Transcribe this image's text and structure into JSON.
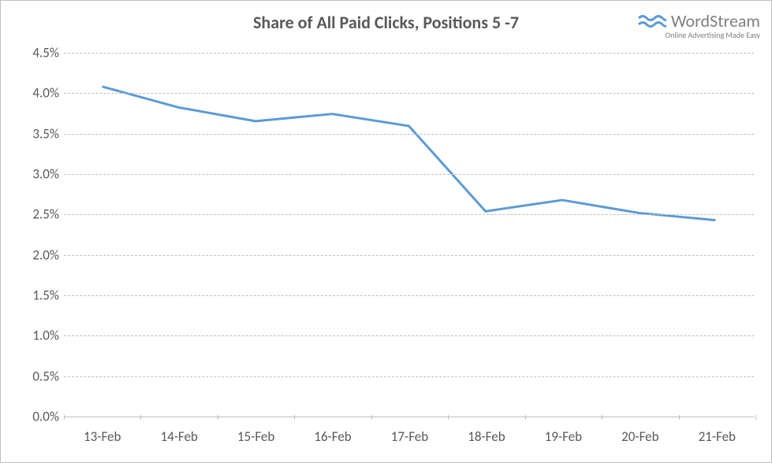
{
  "chart": {
    "type": "line",
    "title": "Share of All Paid Clicks, Positions 5 -7",
    "title_fontsize": 22,
    "title_color": "#595959",
    "title_fontweight": "bold",
    "background_color": "#ffffff",
    "border_color": "#bfbfbf",
    "categories": [
      "13-Feb",
      "14-Feb",
      "15-Feb",
      "16-Feb",
      "17-Feb",
      "18-Feb",
      "19-Feb",
      "20-Feb",
      "21-Feb"
    ],
    "values": [
      4.08,
      3.82,
      3.65,
      3.74,
      3.59,
      2.53,
      2.67,
      2.51,
      2.42
    ],
    "line_color": "#5b9bd5",
    "line_width": 3,
    "y_axis": {
      "min": 0.0,
      "max": 4.5,
      "tick_step": 0.5,
      "format": "percent_one_decimal",
      "tick_labels": [
        "0.0%",
        "0.5%",
        "1.0%",
        "1.5%",
        "2.0%",
        "2.5%",
        "3.0%",
        "3.5%",
        "4.0%",
        "4.5%"
      ],
      "tick_color": "#595959",
      "tick_fontsize": 17
    },
    "x_axis": {
      "tick_color": "#595959",
      "tick_fontsize": 17
    },
    "grid": {
      "horizontal": true,
      "vertical": false,
      "style": "dashed",
      "color": "#bfbfbf"
    },
    "axis_line_color": "#bfbfbf"
  },
  "logo": {
    "brand": "WordStream",
    "tagline": "Online Advertising Made Easy",
    "text_color": "#7f7f7f",
    "wave_color": "#5b9bd5"
  }
}
